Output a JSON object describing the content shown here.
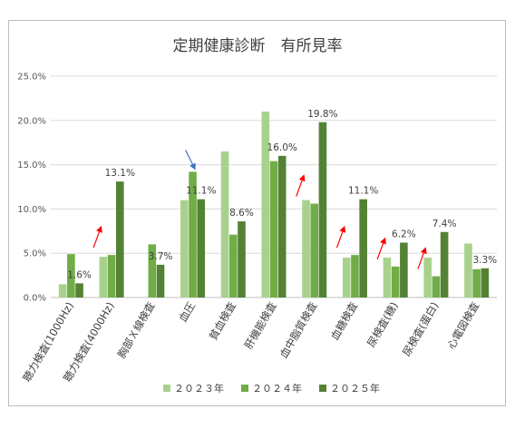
{
  "chart_data": {
    "type": "bar",
    "title": "定期健康診断　有所見率",
    "categories": [
      "聴力検査(1000Hz)",
      "聴力検査(4000Hz)",
      "胸部Ｘ線検査",
      "血圧",
      "貧血検査",
      "肝機能検査",
      "血中脂質検査",
      "血糖検査",
      "尿検査(糖)",
      "尿検査(蛋白)",
      "心電図検査"
    ],
    "series": [
      {
        "name": "２０２３年",
        "color": "#a9d18e",
        "values": [
          1.5,
          4.6,
          null,
          11.0,
          16.5,
          21.0,
          11.0,
          4.5,
          4.5,
          4.5,
          6.1
        ]
      },
      {
        "name": "２０２４年",
        "color": "#70ad47",
        "values": [
          4.9,
          4.8,
          6.0,
          14.2,
          7.1,
          15.4,
          10.6,
          4.8,
          3.5,
          2.4,
          3.2
        ]
      },
      {
        "name": "２０２５年",
        "color": "#548235",
        "values": [
          1.6,
          13.1,
          3.7,
          11.1,
          8.6,
          16.0,
          19.8,
          11.1,
          6.2,
          7.4,
          3.3
        ]
      }
    ],
    "data_labels": [
      "1.6%",
      "13.1%",
      "3.7%",
      "11.1%",
      "8.6%",
      "16.0%",
      "19.8%",
      "11.1%",
      "6.2%",
      "7.4%",
      "3.3%"
    ],
    "yticks": [
      "0.0%",
      "5.0%",
      "10.0%",
      "15.0%",
      "20.0%",
      "25.0%"
    ],
    "ylim": [
      0,
      25
    ],
    "grid": true,
    "legend_position": "bottom",
    "arrows": [
      {
        "category": "聴力検査(4000Hz)",
        "color": "#ff0000",
        "direction": "up"
      },
      {
        "category": "血圧",
        "color": "#4472c4",
        "direction": "down"
      },
      {
        "category": "血中脂質検査",
        "color": "#ff0000",
        "direction": "up"
      },
      {
        "category": "血糖検査",
        "color": "#ff0000",
        "direction": "up"
      },
      {
        "category": "尿検査(糖)",
        "color": "#ff0000",
        "direction": "up"
      },
      {
        "category": "尿検査(蛋白)",
        "color": "#ff0000",
        "direction": "up"
      }
    ]
  }
}
